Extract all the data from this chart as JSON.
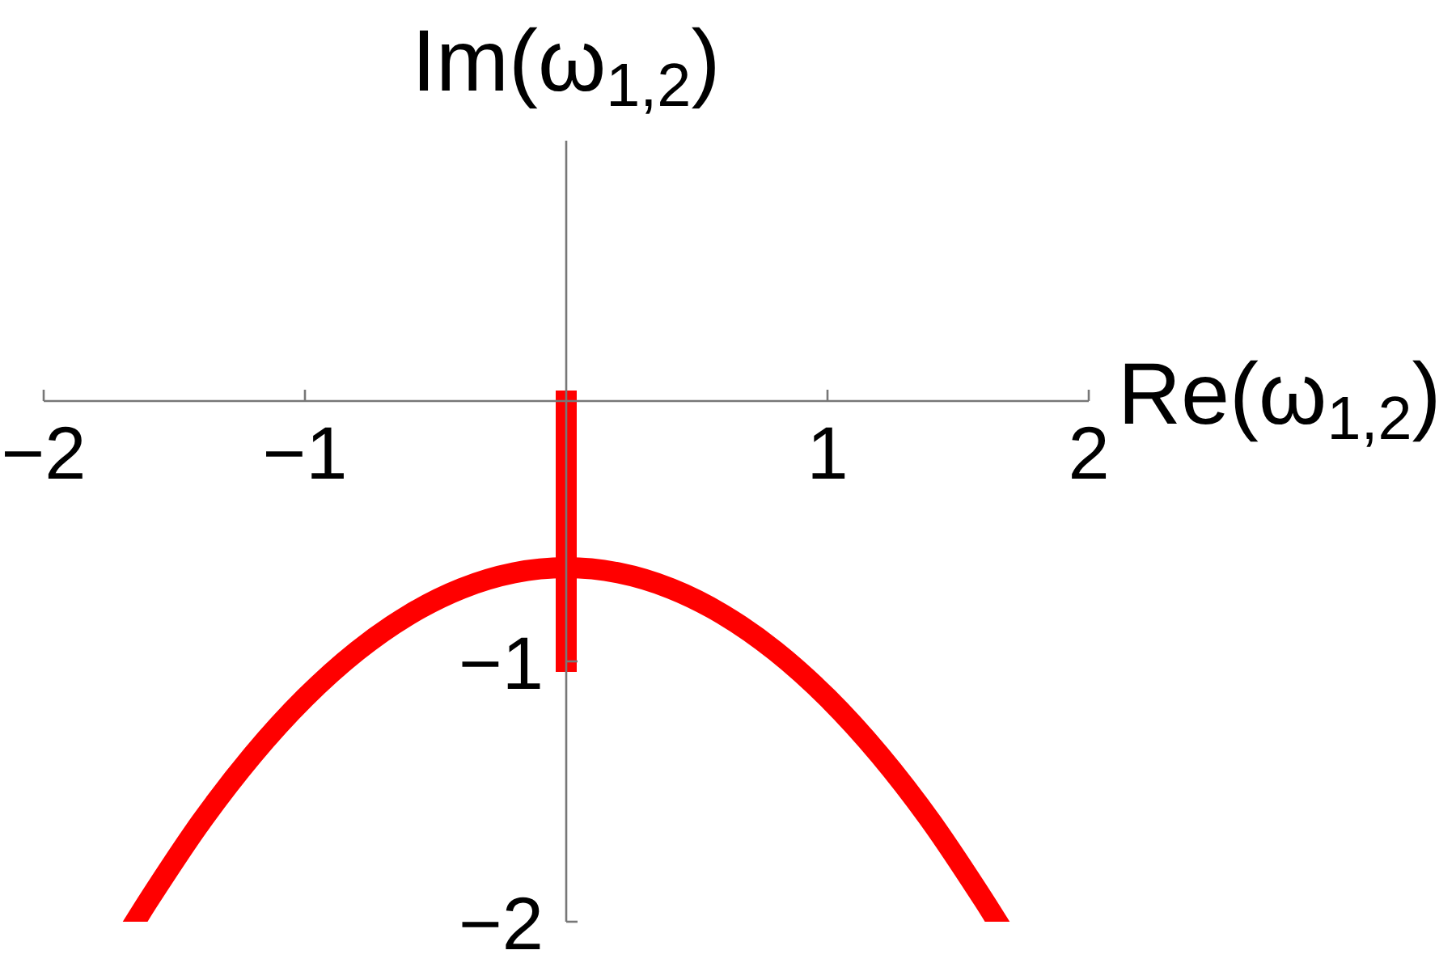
{
  "chart_data": {
    "type": "line",
    "xlabel": "Re(ω$_{1,2}$)",
    "ylabel": "Im(ω$_{1,2}$)",
    "xlim": [
      -2,
      2
    ],
    "ylim": [
      -2,
      1
    ],
    "xticks": [
      {
        "value": -2,
        "label": "−2"
      },
      {
        "value": -1,
        "label": "−1"
      },
      {
        "value": 1,
        "label": "1"
      },
      {
        "value": 2,
        "label": "2"
      }
    ],
    "yticks": [
      {
        "value": -2,
        "label": "−2"
      },
      {
        "value": -1,
        "label": "−1"
      }
    ],
    "series": [
      {
        "color": "#ff0000",
        "x": [
          -1.65,
          -1.6,
          -1.4,
          -1.2,
          -1.0,
          -0.8,
          -0.6,
          -0.4,
          -0.2,
          0,
          0.2,
          0.4,
          0.6,
          0.8,
          1.0,
          1.2,
          1.4,
          1.6,
          1.65
        ],
        "values": [
          -2.0,
          -1.92,
          -1.62,
          -1.36,
          -1.14,
          -0.96,
          -0.82,
          -0.72,
          -0.66,
          -0.64,
          -0.66,
          -0.72,
          -0.82,
          -0.96,
          -1.14,
          -1.36,
          -1.62,
          -1.92,
          -2.0
        ]
      },
      {
        "color": "#ff0000",
        "x": [
          0,
          0
        ],
        "values": [
          0,
          -1
        ]
      }
    ]
  }
}
